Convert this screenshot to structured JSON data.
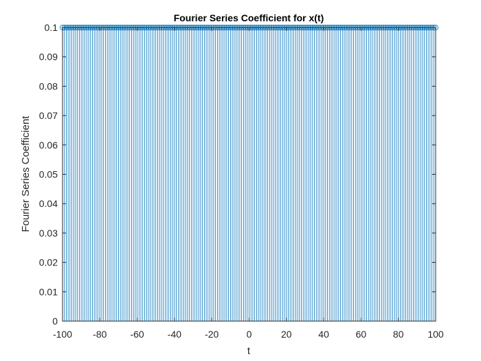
{
  "chart_data": {
    "type": "stem",
    "title": "Fourier Series Coefficient for x(t)",
    "xlabel": "t",
    "ylabel": "Fourier Series Coefficient",
    "xlim": [
      -100,
      100
    ],
    "ylim": [
      0,
      0.1
    ],
    "xticks": [
      "-100",
      "-80",
      "-60",
      "-40",
      "-20",
      "0",
      "20",
      "40",
      "60",
      "80",
      "100"
    ],
    "yticks": [
      "0",
      "0.01",
      "0.02",
      "0.03",
      "0.04",
      "0.05",
      "0.06",
      "0.07",
      "0.08",
      "0.09",
      "0.1"
    ],
    "x_start": -100,
    "x_end": 100,
    "x_step": 1,
    "value": 0.1,
    "series_color": "#0072BD",
    "grid": false,
    "marker": "circle"
  }
}
